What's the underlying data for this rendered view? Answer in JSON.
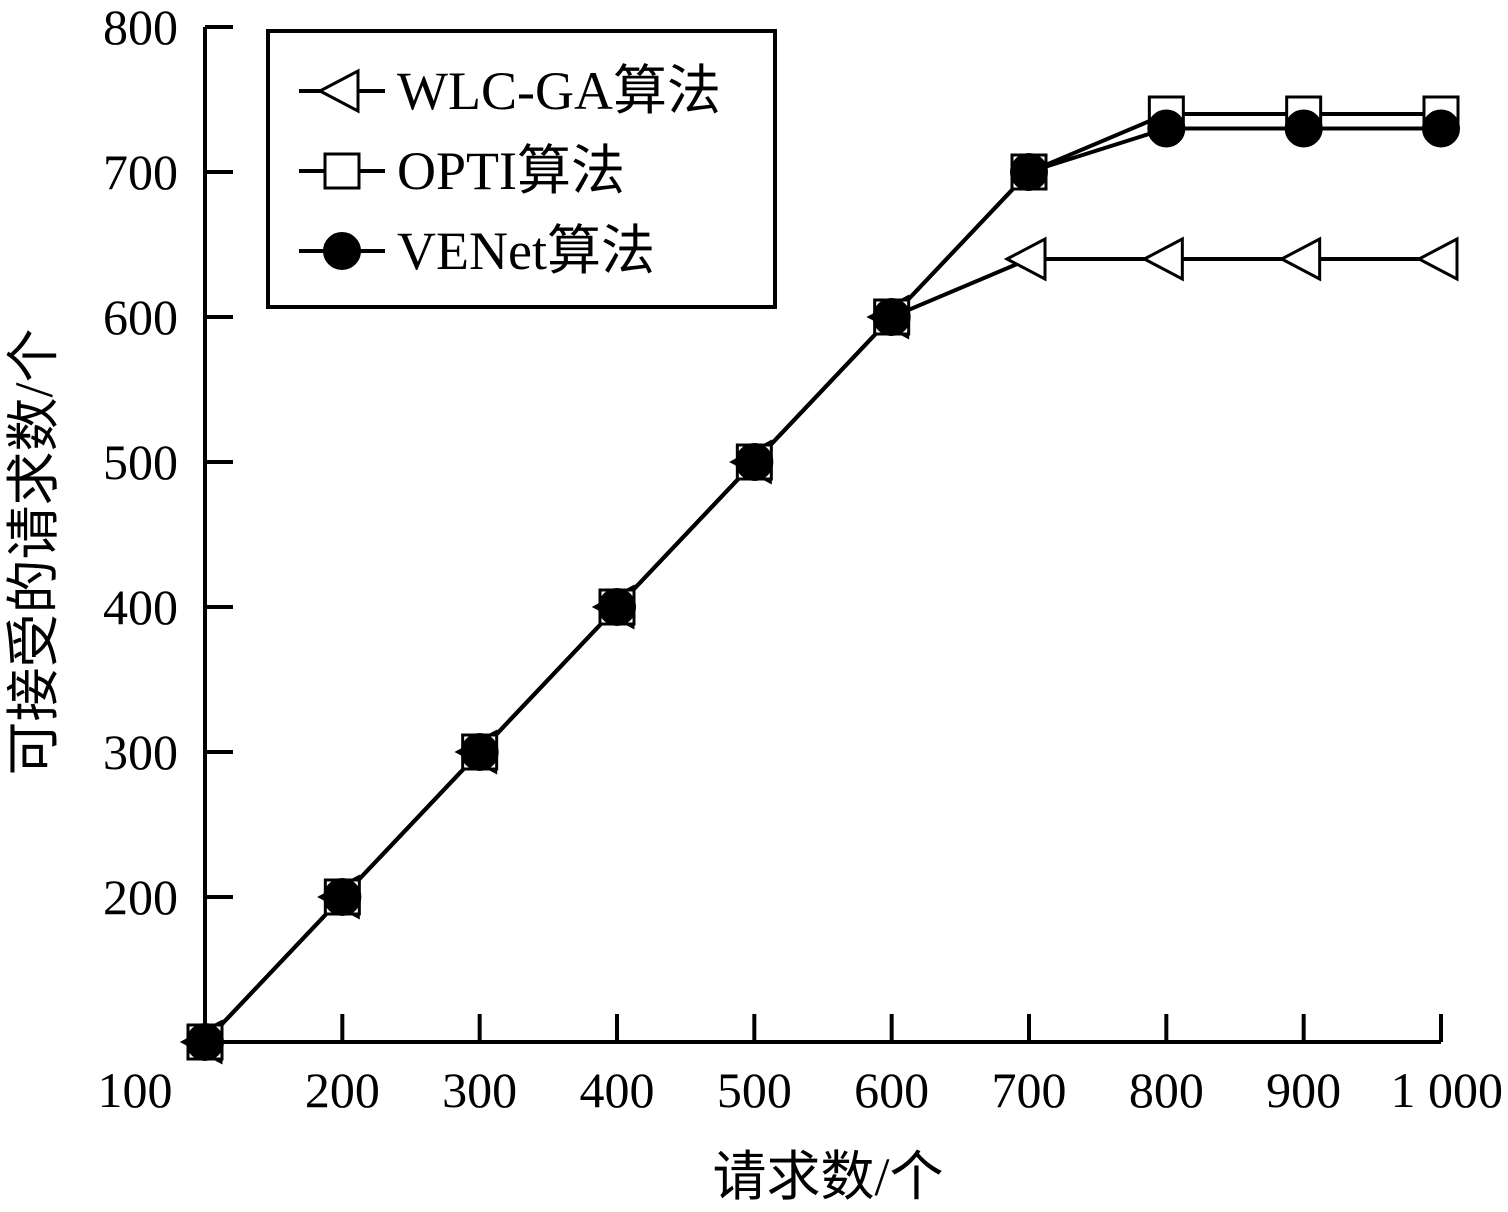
{
  "chart_data": {
    "type": "line",
    "xlabel": "请求数/个",
    "ylabel": "可接受的请求数/个",
    "x": [
      100,
      200,
      300,
      400,
      500,
      600,
      700,
      800,
      900,
      1000
    ],
    "x_tick_labels": [
      "100",
      "200",
      "300",
      "400",
      "500",
      "600",
      "700",
      "800",
      "900",
      "1 000"
    ],
    "xlim": [
      100,
      1000
    ],
    "ylim": [
      100,
      800
    ],
    "y_ticks": [
      200,
      300,
      400,
      500,
      600,
      700,
      800
    ],
    "y_tick_labels": [
      "200",
      "300",
      "400",
      "500",
      "600",
      "700",
      "800"
    ],
    "grid": false,
    "legend_position": "top-left",
    "series": [
      {
        "name": "WLC-GA算法",
        "marker": "triangle-left-open",
        "color": "#000000",
        "values": [
          100,
          200,
          300,
          400,
          500,
          600,
          640,
          640,
          640,
          640
        ]
      },
      {
        "name": "OPTI算法",
        "marker": "square-open",
        "color": "#000000",
        "values": [
          100,
          200,
          300,
          400,
          500,
          600,
          700,
          740,
          740,
          740
        ]
      },
      {
        "name": "VENet算法",
        "marker": "circle-filled",
        "color": "#000000",
        "values": [
          100,
          200,
          300,
          400,
          500,
          600,
          700,
          730,
          730,
          730
        ]
      }
    ]
  }
}
